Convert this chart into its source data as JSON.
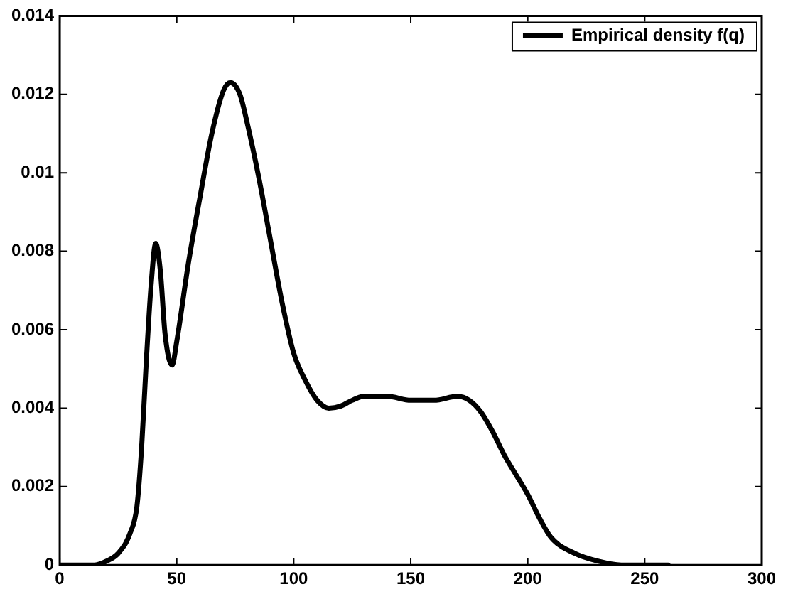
{
  "chart_data": {
    "type": "line",
    "legend": "top right",
    "marker": "none",
    "line_style": "solid",
    "grid": false,
    "xlim": [
      0,
      300
    ],
    "xticks": [
      0,
      50,
      100,
      150,
      200,
      250,
      300
    ],
    "ylim": [
      0,
      0.014
    ],
    "yticks": [
      0,
      0.002,
      0.004,
      0.006,
      0.008,
      0.01,
      0.012,
      0.014
    ],
    "series": [
      {
        "name": "Empirical density f(q)",
        "color": "#000000",
        "x": [
          0,
          10,
          15,
          20,
          25,
          30,
          33,
          35,
          37,
          39,
          41,
          43,
          45,
          48,
          50,
          55,
          60,
          65,
          70,
          73,
          77,
          80,
          85,
          90,
          95,
          100,
          105,
          110,
          115,
          120,
          125,
          130,
          140,
          150,
          160,
          170,
          175,
          180,
          185,
          190,
          195,
          200,
          205,
          210,
          220,
          230,
          240,
          250,
          260
        ],
        "values": [
          0,
          0,
          0,
          0.0001,
          0.0003,
          0.0008,
          0.0015,
          0.003,
          0.0052,
          0.0071,
          0.0082,
          0.0075,
          0.0059,
          0.0051,
          0.0057,
          0.0077,
          0.0094,
          0.011,
          0.0121,
          0.0123,
          0.012,
          0.0113,
          0.0099,
          0.0083,
          0.0067,
          0.0054,
          0.0047,
          0.0042,
          0.004,
          0.00405,
          0.0042,
          0.0043,
          0.0043,
          0.0042,
          0.0042,
          0.0043,
          0.0042,
          0.0039,
          0.0034,
          0.0028,
          0.0023,
          0.0018,
          0.0012,
          0.0007,
          0.0003,
          0.0001,
          0,
          0,
          0
        ]
      }
    ]
  }
}
